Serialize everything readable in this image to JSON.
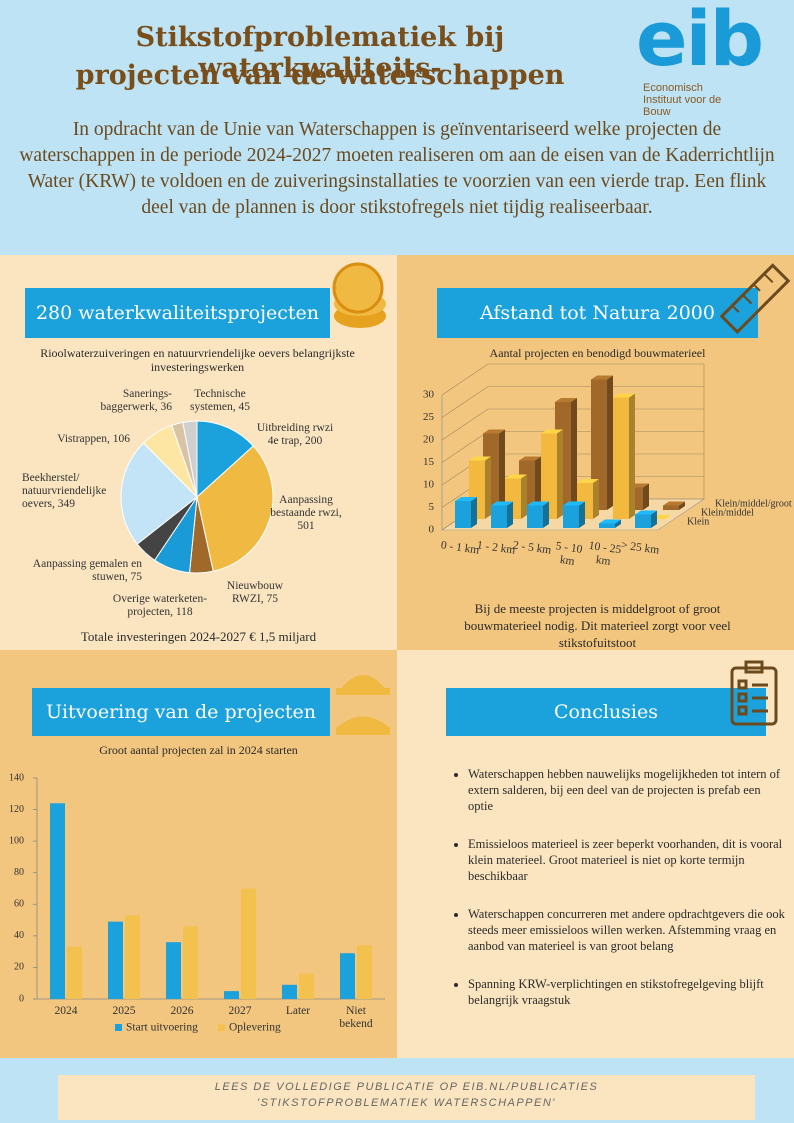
{
  "header": {
    "title": [
      "Stikstofproblematiek bij waterkwaliteits-",
      "projecten van de waterschappen"
    ],
    "intro": "In opdracht van de Unie van Waterschappen is geïnventariseerd welke projecten de waterschappen in de periode 2024-2027 moeten realiseren om aan de eisen van de Kaderrichtlijn Water (KRW) te voldoen en de zuiveringsinstallaties te voorzien van een vierde trap. Een flink deel van de plannen is door stikstofregels niet tijdig realiseerbaar."
  },
  "logo": {
    "name": "eib",
    "subtitle": "Economisch Instituut voor de Bouw"
  },
  "chart_data": [
    {
      "type": "pie",
      "title": "280 waterkwaliteitsprojecten",
      "subtitle": "Rioolwaterzuiveringen en natuurvriendelijke oevers belangrijkste investeringswerken",
      "categories": [
        "Uitbreiding rwzi 4e trap, 200",
        "Aanpassing bestaande rwzi, 501",
        "Nieuwbouw RWZI, 75",
        "Overige waterketen-projecten, 118",
        "Aanpassing gemalen en stuwen, 75",
        "Beekherstel/ natuurvriendelijke oevers, 349",
        "Vistrappen, 106",
        "Sanerings-baggerwerk, 36",
        "Technische systemen, 45"
      ],
      "values": [
        200,
        501,
        75,
        118,
        75,
        349,
        106,
        36,
        45
      ],
      "colors": [
        "#1ba1dc",
        "#f0b942",
        "#a0692a",
        "#1a9ad6",
        "#444444",
        "#c3e4f6",
        "#fde6a3",
        "#d9c3a5",
        "#cfcfcf"
      ],
      "note": "Totale investeringen 2024-2027 € 1,5 miljard"
    },
    {
      "type": "bar3d",
      "title": "Afstand tot Natura 2000",
      "subtitle": "Aantal projecten en benodigd bouwmaterieel",
      "categories": [
        "0 - 1 km",
        "1 - 2 km",
        "2 - 5 km",
        "5 - 10 km",
        "10 - 25 km",
        "> 25 km"
      ],
      "series": [
        {
          "name": "Klein",
          "color": "#1ba1dc",
          "values": [
            6,
            5,
            5,
            5,
            1,
            3
          ]
        },
        {
          "name": "Klein/middel",
          "color": "#f3b93f",
          "values": [
            13,
            9,
            19,
            8,
            27,
            0
          ]
        },
        {
          "name": "Klein/middel/groot",
          "color": "#a0692a",
          "values": [
            17,
            11,
            24,
            29,
            5,
            1
          ]
        }
      ],
      "ylim": [
        0,
        30
      ],
      "yticks": [
        0,
        5,
        10,
        15,
        20,
        25,
        30
      ],
      "grid": true,
      "note": "Bij de meeste projecten is middelgroot of groot bouwmaterieel nodig. Dit materieel zorgt voor veel stikstofuitstoot"
    },
    {
      "type": "bar",
      "title": "Uitvoering van de projecten",
      "subtitle": "Groot aantal projecten zal in 2024 starten",
      "categories": [
        "2024",
        "2025",
        "2026",
        "2027",
        "Later",
        "Niet bekend"
      ],
      "series": [
        {
          "name": "Start uitvoering",
          "color": "#1ba1dc",
          "values": [
            124,
            49,
            36,
            5,
            9,
            29
          ]
        },
        {
          "name": "Oplevering",
          "color": "#f2c14e",
          "values": [
            33,
            53,
            46,
            70,
            16,
            34
          ]
        }
      ],
      "ylim": [
        0,
        140
      ],
      "yticks": [
        0,
        20,
        40,
        60,
        80,
        100,
        120,
        140
      ],
      "grid": false,
      "legend": "bottom"
    }
  ],
  "conclusions": {
    "title": "Conclusies",
    "items": [
      "Waterschappen hebben nauwelijks mogelijkheden tot intern of extern salderen, bij een deel van de projecten is prefab een optie",
      "Emissieloos materieel is zeer beperkt voorhanden, dit is vooral klein materieel. Groot materieel is niet op korte termijn beschikbaar",
      "Waterschappen concurreren met andere opdrachtgevers die ook steeds meer emissieloos willen werken. Afstemming vraag en aanbod van materieel is van groot belang",
      "Spanning KRW-verplichtingen en stikstofregelgeving blijft belangrijk vraagstuk"
    ]
  },
  "footer": [
    "LEES DE VOLLEDIGE PUBLICATIE OP EIB.NL/PUBLICATIES",
    "'STIKSTOFPROBLEMATIEK WATERSCHAPPEN'"
  ]
}
